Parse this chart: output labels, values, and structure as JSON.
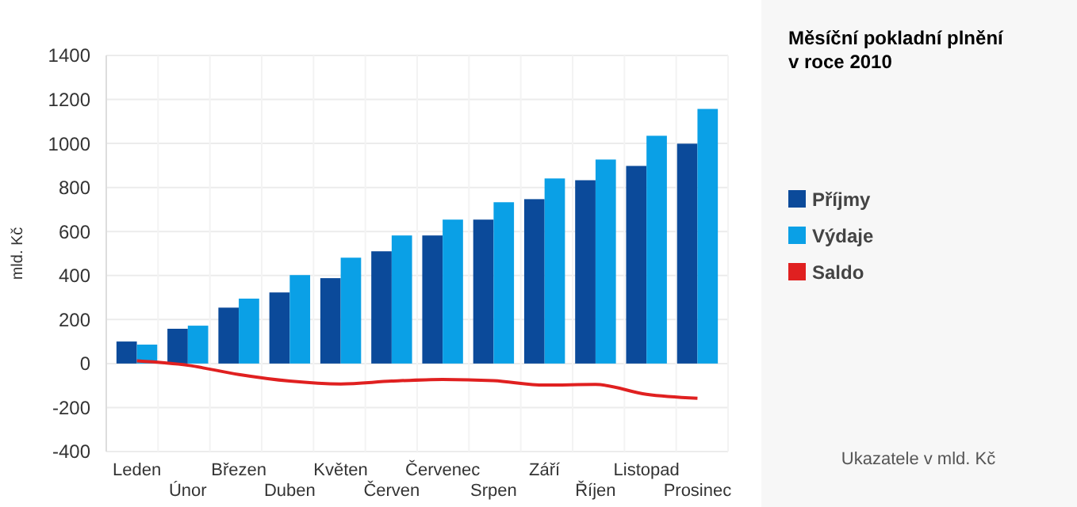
{
  "chart_data": {
    "type": "bar",
    "title": "Měsíční pokladní plnění\nv roce 2010",
    "ylabel": "mld. Kč",
    "annotations": [
      "Ukazatele v mld. Kč"
    ],
    "categories": [
      "Leden",
      "Únor",
      "Březen",
      "Duben",
      "Květen",
      "Červen",
      "Červenec",
      "Srpen",
      "Září",
      "Říjen",
      "Listopad",
      "Prosinec"
    ],
    "series": [
      {
        "name": "Příjmy",
        "color": "#0b4a9a",
        "values": [
          100,
          158,
          254,
          323,
          388,
          510,
          582,
          654,
          747,
          833,
          898,
          999
        ]
      },
      {
        "name": "Výdaje",
        "color": "#0aa0e6",
        "values": [
          86,
          172,
          295,
          402,
          481,
          582,
          654,
          733,
          841,
          927,
          1035,
          1157
        ]
      },
      {
        "name": "Saldo",
        "type": "line",
        "color": "#e02020",
        "values": [
          12,
          -8,
          -50,
          -80,
          -93,
          -80,
          -72,
          -78,
          -98,
          -95,
          -140,
          -158
        ]
      }
    ],
    "ylim": [
      -400,
      1400
    ],
    "yticks": [
      -400,
      -200,
      0,
      200,
      400,
      600,
      800,
      1000,
      1200,
      1400
    ],
    "grid": true,
    "legend": "right"
  }
}
